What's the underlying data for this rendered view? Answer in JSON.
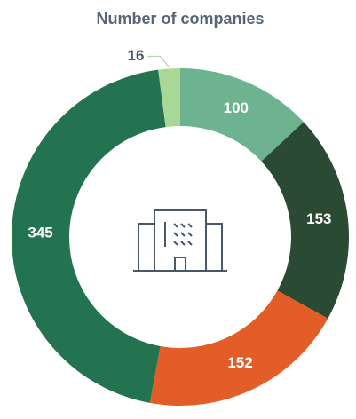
{
  "chart_data": {
    "type": "donut",
    "title": "Number of companies",
    "categories": [
      null,
      null,
      null,
      null,
      null
    ],
    "values": [
      100,
      153,
      152,
      345,
      16
    ],
    "colors": [
      "#6db38f",
      "#2a4a34",
      "#e25d28",
      "#237350",
      "#a9d896"
    ]
  }
}
